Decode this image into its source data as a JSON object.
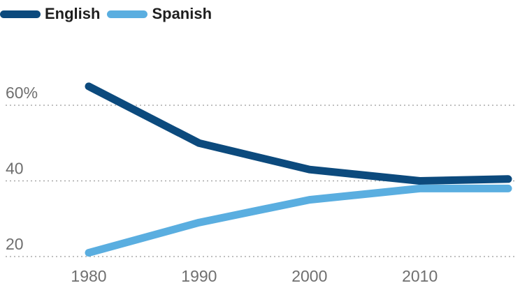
{
  "chart_data": {
    "type": "line",
    "title": "",
    "xlabel": "",
    "ylabel": "",
    "legend_position": "top-left",
    "grid": true,
    "x": [
      1980,
      1990,
      2000,
      2010,
      2018
    ],
    "xlim": [
      1980,
      2018
    ],
    "ylim": [
      20,
      60
    ],
    "x_ticks": [
      1980,
      1990,
      2000,
      2010
    ],
    "y_ticks": [
      {
        "value": 60,
        "label": "60%"
      },
      {
        "value": 40,
        "label": "40"
      },
      {
        "value": 20,
        "label": "20"
      }
    ],
    "series": [
      {
        "name": "English",
        "color": "#0c4a7d",
        "values": [
          65,
          50,
          43,
          40,
          40.5
        ]
      },
      {
        "name": "Spanish",
        "color": "#5aaee0",
        "values": [
          21,
          29,
          35,
          38,
          38
        ]
      }
    ]
  }
}
